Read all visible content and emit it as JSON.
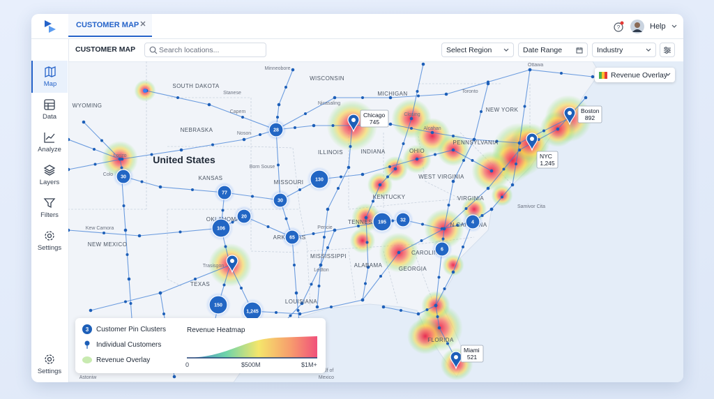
{
  "tab": {
    "label": "CUSTOMER MAP"
  },
  "header": {
    "help": "Help"
  },
  "toolbar": {
    "title": "CUSTOMER MAP",
    "search_placeholder": "Search locations...",
    "filters": [
      "Select Region",
      "Date Range",
      "Industry"
    ]
  },
  "sidebar": {
    "items": [
      "Map",
      "Data",
      "Analyze",
      "Layers",
      "Filters",
      "Settings"
    ],
    "footer": "Settings"
  },
  "map": {
    "country_label": "United States",
    "overlay_select": "Revenue Overlay",
    "region_labels": [
      "SOUTH DAKOTA",
      "WISCONSIN",
      "MICHIGAN",
      "WYOMING",
      "NEBRASKA",
      "ILLINOIS",
      "INDIANA",
      "OHIO",
      "PENNSYLVANIA",
      "NEW YORK",
      "KANSAS",
      "MISSOURI",
      "KENTUCKY",
      "WEST VIRGINIA",
      "VIRGINIA",
      "TENNESSEE",
      "ARKANSAS",
      "OKLAHOMA",
      "NEW MEXICO",
      "TEXAS",
      "MISSISSIPPI",
      "ALABAMA",
      "GEORGIA",
      "LOUISIANA",
      "FLORIDA",
      "N.CAROLINA",
      "CAROLINA"
    ],
    "city_labels": [
      "Minneobore",
      "Toronto",
      "Ottawa",
      "Stanese",
      "Capem",
      "Noson",
      "Born Souse",
      "Lorizo",
      "Colo",
      "Kew Camora",
      "Trasisgon",
      "Samivor Cita",
      "Nicasaling",
      "Closing",
      "Alcahan",
      "Pencie",
      "Ledton",
      "Astoniw",
      "Gulf of",
      "Mexico"
    ],
    "clusters": [
      "28",
      "30",
      "77",
      "130",
      "30",
      "20",
      "106",
      "65",
      "150",
      "1,245",
      "195",
      "32",
      "4",
      "6"
    ],
    "pins": [
      {
        "name": "Chicago",
        "count": "745"
      },
      {
        "name": "NYC",
        "count": "1,245"
      },
      {
        "name": "Boston",
        "count": "892"
      },
      {
        "name": "Miami",
        "count": "521"
      }
    ]
  },
  "legend": {
    "cluster_badge": "3",
    "items": [
      "Customer Pin Clusters",
      "Individual Customers",
      "Revenue Overlay"
    ],
    "heatmap_title": "Revenue Heatmap",
    "scale_labels": [
      "0",
      "$500M",
      "$1M+"
    ]
  }
}
